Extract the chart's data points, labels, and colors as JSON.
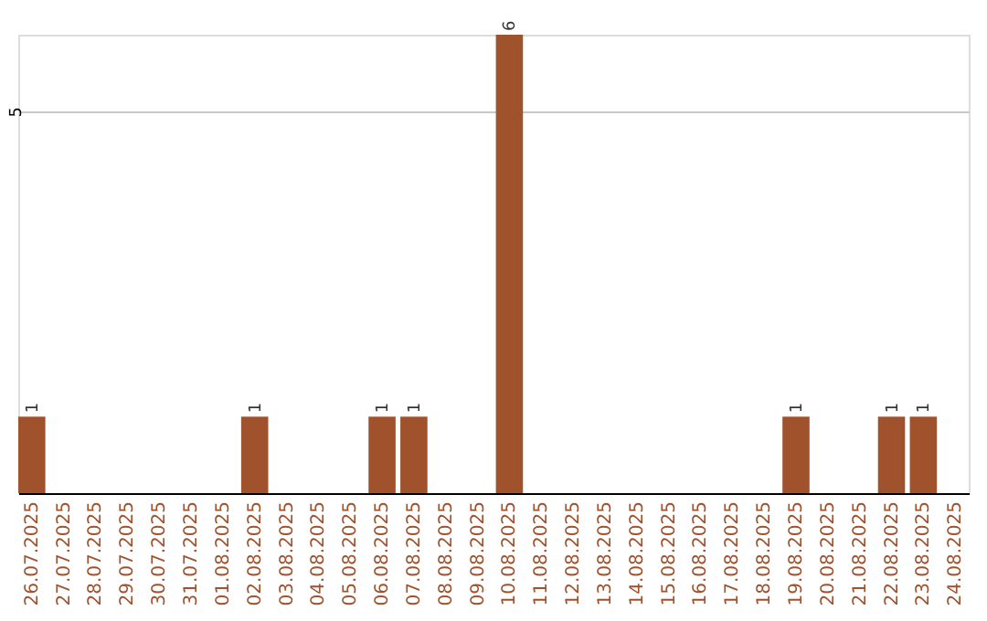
{
  "chart_data": {
    "type": "bar",
    "categories": [
      "26.07.2025",
      "27.07.2025",
      "28.07.2025",
      "29.07.2025",
      "30.07.2025",
      "31.07.2025",
      "01.08.2025",
      "02.08.2025",
      "03.08.2025",
      "04.08.2025",
      "05.08.2025",
      "06.08.2025",
      "07.08.2025",
      "08.08.2025",
      "09.08.2025",
      "10.08.2025",
      "11.08.2025",
      "12.08.2025",
      "13.08.2025",
      "14.08.2025",
      "15.08.2025",
      "16.08.2025",
      "17.08.2025",
      "18.08.2025",
      "19.08.2025",
      "20.08.2025",
      "21.08.2025",
      "22.08.2025",
      "23.08.2025",
      "24.08.2025"
    ],
    "values": [
      1,
      0,
      0,
      0,
      0,
      0,
      0,
      1,
      0,
      0,
      0,
      1,
      1,
      0,
      0,
      6,
      0,
      0,
      0,
      0,
      0,
      0,
      0,
      0,
      1,
      0,
      0,
      1,
      1,
      0
    ],
    "value_labels": [
      "1",
      null,
      null,
      null,
      null,
      null,
      null,
      "1",
      null,
      null,
      null,
      "1",
      "1",
      null,
      null,
      "6",
      null,
      null,
      null,
      null,
      null,
      null,
      null,
      null,
      "1",
      null,
      null,
      "1",
      "1",
      null
    ],
    "color": "#a0522d",
    "ylim": [
      0,
      6
    ],
    "yticks": [
      5
    ],
    "grid": "y"
  }
}
